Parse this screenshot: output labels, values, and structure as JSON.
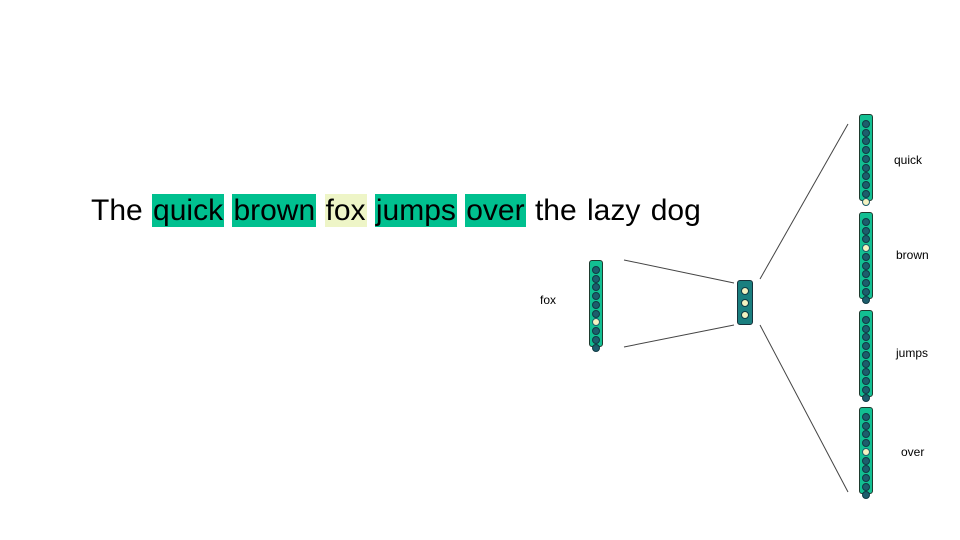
{
  "sentence": {
    "words": [
      {
        "text": "The",
        "role": "plain"
      },
      {
        "text": "quick",
        "role": "context"
      },
      {
        "text": "brown",
        "role": "context"
      },
      {
        "text": "fox",
        "role": "center"
      },
      {
        "text": "jumps",
        "role": "context"
      },
      {
        "text": "over",
        "role": "context"
      },
      {
        "text": "the",
        "role": "plain"
      },
      {
        "text": "lazy",
        "role": "plain"
      },
      {
        "text": "dog",
        "role": "plain"
      }
    ]
  },
  "input": {
    "label": "fox",
    "hot_index": 6,
    "size": 10
  },
  "hidden": {
    "size": 3
  },
  "outputs": [
    {
      "label": "quick",
      "hot_index": 9,
      "size": 10
    },
    {
      "label": "brown",
      "hot_index": 3,
      "size": 10
    },
    {
      "label": "jumps",
      "hot_index": -1,
      "size": 10
    },
    {
      "label": "over",
      "hot_index": 4,
      "size": 10
    }
  ],
  "colors": {
    "context_highlight": "#00c08f",
    "center_highlight": "#eef5c7",
    "vector_fill": "#12bf92",
    "hidden_fill": "#1a7f7f",
    "dot": "#1d5e6d",
    "hot_dot": "#f3f2c0"
  }
}
